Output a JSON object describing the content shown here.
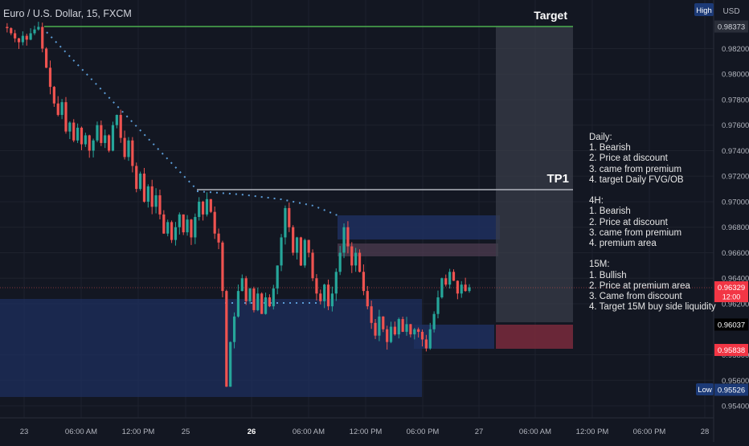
{
  "chart_title": "Euro / U.S. Dollar, 15, FXCM",
  "currency_label": "USD",
  "high_badge": "High",
  "low_badge": "Low",
  "target_label": "Target",
  "tp1_label": "TP1",
  "notes": [
    "Daily:",
    "1. Bearish",
    "2. Price at discount",
    "3. came from premium",
    "4. target Daily FVG/OB",
    "",
    "4H:",
    "1. Bearish",
    "2. Price at discount",
    "3. came from premium",
    "4. premium area",
    "",
    "15M:",
    "1. Bullish",
    "2. Price at premium area",
    "3. Came from discount",
    "4. Target 15M buy side liquidity"
  ],
  "colors": {
    "background": "#131722",
    "bull": "#26a69a",
    "bear": "#ef5350",
    "target_line": "#4caf50",
    "tp1_line": "#b2b5be",
    "dotted": "#5b9bd5",
    "zone_blue": "#1e2f5e",
    "zone_red": "#7a2a3c",
    "zone_grey": "#3a3e4a"
  },
  "chart_data": {
    "type": "candlestick",
    "title": "Euro / U.S. Dollar, 15, FXCM",
    "ylim": [
      0.954,
      0.985
    ],
    "y_ticks": [
      "0.98200",
      "0.98000",
      "0.97800",
      "0.97600",
      "0.97400",
      "0.97200",
      "0.97000",
      "0.96800",
      "0.96600",
      "0.96400",
      "0.96200",
      "0.95800",
      "0.95600",
      "0.95400"
    ],
    "x_ticks": [
      "23",
      "06:00 AM",
      "12:00 PM",
      "25",
      "26",
      "06:00 AM",
      "12:00 PM",
      "06:00 PM",
      "27",
      "06:00 AM",
      "12:00 PM",
      "06:00 PM",
      "28"
    ],
    "x_tick_bold": "26",
    "price_labels": [
      {
        "text": "0.98373",
        "value": 0.98373,
        "style": "grey"
      },
      {
        "text": "0.96329",
        "value": 0.96329,
        "style": "red",
        "sub": "12:00"
      },
      {
        "text": "0.96037",
        "value": 0.96037,
        "style": "black"
      },
      {
        "text": "0.95838",
        "value": 0.95838,
        "style": "red"
      },
      {
        "text": "0.95526",
        "value": 0.95526,
        "style": "blue"
      }
    ],
    "target_level": 0.98373,
    "tp1_level": 0.9708,
    "current_price": 0.96329,
    "path": [
      0.9837,
      0.9836,
      0.9832,
      0.9828,
      0.9825,
      0.983,
      0.9827,
      0.9832,
      0.9835,
      0.9837,
      0.982,
      0.9805,
      0.979,
      0.9777,
      0.9768,
      0.9778,
      0.9755,
      0.9762,
      0.9748,
      0.9758,
      0.9745,
      0.9752,
      0.974,
      0.9748,
      0.976,
      0.9746,
      0.9752,
      0.974,
      0.976,
      0.9768,
      0.975,
      0.9735,
      0.9748,
      0.9728,
      0.971,
      0.9722,
      0.97,
      0.9712,
      0.9696,
      0.9705,
      0.969,
      0.9675,
      0.9684,
      0.967,
      0.968,
      0.969,
      0.9676,
      0.9686,
      0.9672,
      0.9688,
      0.97,
      0.969,
      0.9702,
      0.9692,
      0.9675,
      0.9668,
      0.963,
      0.9555,
      0.959,
      0.961,
      0.963,
      0.964,
      0.9622,
      0.9632,
      0.9615,
      0.9628,
      0.9612,
      0.9625,
      0.9618,
      0.9632,
      0.965,
      0.9672,
      0.9695,
      0.968,
      0.966,
      0.9672,
      0.965,
      0.967,
      0.966,
      0.964,
      0.9628,
      0.9622,
      0.9635,
      0.9618,
      0.9628,
      0.9645,
      0.966,
      0.968,
      0.9665,
      0.965,
      0.966,
      0.9645,
      0.963,
      0.9618,
      0.9605,
      0.9595,
      0.961,
      0.96,
      0.959,
      0.9602,
      0.9596,
      0.9608,
      0.9598,
      0.9604,
      0.9596,
      0.96,
      0.9598,
      0.9592,
      0.9585,
      0.96,
      0.9612,
      0.9625,
      0.964,
      0.9635,
      0.9645,
      0.9638,
      0.9628,
      0.9635,
      0.963,
      0.96329
    ]
  }
}
